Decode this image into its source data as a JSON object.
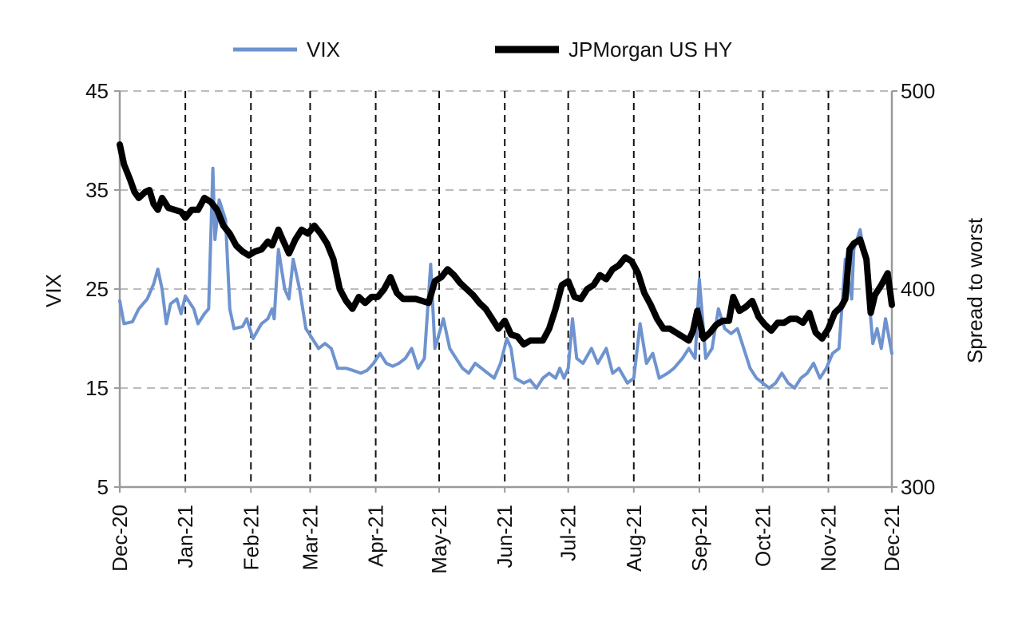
{
  "chart_data": {
    "type": "line",
    "grid": true,
    "legend_position": "top-center",
    "x_axis": {
      "tick_labels": [
        "Dec-20",
        "Jan-21",
        "Feb-21",
        "Mar-21",
        "Apr-21",
        "May-21",
        "Jun-21",
        "Jul-21",
        "Aug-21",
        "Sep-21",
        "Oct-21",
        "Nov-21",
        "Dec-21"
      ],
      "range": [
        "2020-12-01",
        "2021-12-01"
      ]
    },
    "y_left": {
      "label": "VIX",
      "range": [
        5,
        45
      ],
      "ticks": [
        5,
        15,
        25,
        35,
        45
      ]
    },
    "y_right": {
      "label": "Spread to worst",
      "range": [
        300,
        500
      ],
      "ticks": [
        300,
        400,
        500
      ]
    },
    "series": [
      {
        "name": "VIX",
        "axis": "left",
        "color": "#6e93cf",
        "points": [
          [
            "2020-12-01",
            23.8
          ],
          [
            "2020-12-03",
            21.5
          ],
          [
            "2020-12-07",
            21.7
          ],
          [
            "2020-12-10",
            23.0
          ],
          [
            "2020-12-14",
            24.0
          ],
          [
            "2020-12-17",
            25.5
          ],
          [
            "2020-12-19",
            27.0
          ],
          [
            "2020-12-21",
            25.0
          ],
          [
            "2020-12-23",
            21.5
          ],
          [
            "2020-12-25",
            23.5
          ],
          [
            "2020-12-28",
            24.0
          ],
          [
            "2020-12-30",
            22.5
          ],
          [
            "2021-01-01",
            24.3
          ],
          [
            "2021-01-05",
            23.0
          ],
          [
            "2021-01-07",
            21.5
          ],
          [
            "2021-01-10",
            22.5
          ],
          [
            "2021-01-12",
            23.0
          ],
          [
            "2021-01-14",
            37.2
          ],
          [
            "2021-01-15",
            30.0
          ],
          [
            "2021-01-17",
            34.0
          ],
          [
            "2021-01-20",
            32.0
          ],
          [
            "2021-01-22",
            23.0
          ],
          [
            "2021-01-24",
            21.0
          ],
          [
            "2021-01-28",
            21.2
          ],
          [
            "2021-01-30",
            22.0
          ],
          [
            "2021-02-02",
            20.0
          ],
          [
            "2021-02-06",
            21.5
          ],
          [
            "2021-02-09",
            22.0
          ],
          [
            "2021-02-11",
            23.0
          ],
          [
            "2021-02-12",
            22.0
          ],
          [
            "2021-02-14",
            29.0
          ],
          [
            "2021-02-17",
            25.0
          ],
          [
            "2021-02-19",
            24.0
          ],
          [
            "2021-02-21",
            28.0
          ],
          [
            "2021-02-24",
            25.0
          ],
          [
            "2021-02-27",
            21.0
          ],
          [
            "2021-03-02",
            20.0
          ],
          [
            "2021-03-05",
            19.0
          ],
          [
            "2021-03-08",
            19.5
          ],
          [
            "2021-03-11",
            19.0
          ],
          [
            "2021-03-14",
            17.0
          ],
          [
            "2021-03-18",
            17.0
          ],
          [
            "2021-03-21",
            16.8
          ],
          [
            "2021-03-25",
            16.5
          ],
          [
            "2021-03-28",
            16.8
          ],
          [
            "2021-03-31",
            17.5
          ],
          [
            "2021-04-03",
            18.5
          ],
          [
            "2021-04-06",
            17.5
          ],
          [
            "2021-04-09",
            17.2
          ],
          [
            "2021-04-12",
            17.5
          ],
          [
            "2021-04-15",
            18.0
          ],
          [
            "2021-04-18",
            19.0
          ],
          [
            "2021-04-21",
            17.0
          ],
          [
            "2021-04-24",
            18.0
          ],
          [
            "2021-04-27",
            27.5
          ],
          [
            "2021-04-29",
            19.0
          ],
          [
            "2021-05-03",
            22.0
          ],
          [
            "2021-05-06",
            19.0
          ],
          [
            "2021-05-09",
            18.0
          ],
          [
            "2021-05-12",
            17.0
          ],
          [
            "2021-05-15",
            16.5
          ],
          [
            "2021-05-18",
            17.5
          ],
          [
            "2021-05-21",
            17.0
          ],
          [
            "2021-05-24",
            16.5
          ],
          [
            "2021-05-27",
            16.0
          ],
          [
            "2021-05-30",
            17.5
          ],
          [
            "2021-06-02",
            20.0
          ],
          [
            "2021-06-04",
            19.0
          ],
          [
            "2021-06-06",
            16.0
          ],
          [
            "2021-06-10",
            15.5
          ],
          [
            "2021-06-13",
            15.8
          ],
          [
            "2021-06-16",
            15.0
          ],
          [
            "2021-06-19",
            16.0
          ],
          [
            "2021-06-22",
            16.5
          ],
          [
            "2021-06-25",
            16.0
          ],
          [
            "2021-06-27",
            17.0
          ],
          [
            "2021-06-29",
            16.0
          ],
          [
            "2021-07-01",
            17.0
          ],
          [
            "2021-07-03",
            22.0
          ],
          [
            "2021-07-05",
            18.0
          ],
          [
            "2021-07-08",
            17.5
          ],
          [
            "2021-07-12",
            19.0
          ],
          [
            "2021-07-15",
            17.5
          ],
          [
            "2021-07-19",
            19.0
          ],
          [
            "2021-07-22",
            16.5
          ],
          [
            "2021-07-25",
            17.0
          ],
          [
            "2021-07-29",
            15.5
          ],
          [
            "2021-08-01",
            16.0
          ],
          [
            "2021-08-04",
            21.5
          ],
          [
            "2021-08-07",
            17.5
          ],
          [
            "2021-08-10",
            18.5
          ],
          [
            "2021-08-13",
            16.0
          ],
          [
            "2021-08-17",
            16.5
          ],
          [
            "2021-08-20",
            17.0
          ],
          [
            "2021-08-24",
            18.0
          ],
          [
            "2021-08-27",
            19.0
          ],
          [
            "2021-08-30",
            18.0
          ],
          [
            "2021-09-01",
            26.0
          ],
          [
            "2021-09-04",
            18.0
          ],
          [
            "2021-09-07",
            19.0
          ],
          [
            "2021-09-10",
            23.0
          ],
          [
            "2021-09-13",
            21.0
          ],
          [
            "2021-09-16",
            20.5
          ],
          [
            "2021-09-19",
            21.0
          ],
          [
            "2021-09-22",
            19.0
          ],
          [
            "2021-09-25",
            17.0
          ],
          [
            "2021-09-28",
            16.0
          ],
          [
            "2021-10-01",
            15.5
          ],
          [
            "2021-10-04",
            15.0
          ],
          [
            "2021-10-07",
            15.5
          ],
          [
            "2021-10-10",
            16.5
          ],
          [
            "2021-10-13",
            15.5
          ],
          [
            "2021-10-16",
            15.0
          ],
          [
            "2021-10-19",
            16.0
          ],
          [
            "2021-10-22",
            16.5
          ],
          [
            "2021-10-25",
            17.5
          ],
          [
            "2021-10-28",
            16.0
          ],
          [
            "2021-10-31",
            17.0
          ],
          [
            "2021-11-03",
            18.5
          ],
          [
            "2021-11-06",
            19.0
          ],
          [
            "2021-11-09",
            28.0
          ],
          [
            "2021-11-12",
            24.0
          ],
          [
            "2021-11-13",
            29.0
          ],
          [
            "2021-11-16",
            31.0
          ],
          [
            "2021-11-19",
            27.0
          ],
          [
            "2021-11-22",
            19.5
          ],
          [
            "2021-11-24",
            21.0
          ],
          [
            "2021-11-26",
            19.0
          ],
          [
            "2021-11-28",
            22.0
          ],
          [
            "2021-12-01",
            18.5
          ]
        ]
      },
      {
        "name": "JPMorgan US HY",
        "axis": "right",
        "color": "#000000",
        "points": [
          [
            "2020-12-01",
            473
          ],
          [
            "2020-12-03",
            463
          ],
          [
            "2020-12-06",
            455
          ],
          [
            "2020-12-08",
            449
          ],
          [
            "2020-12-10",
            446
          ],
          [
            "2020-12-13",
            449
          ],
          [
            "2020-12-15",
            450
          ],
          [
            "2020-12-17",
            443
          ],
          [
            "2020-12-19",
            440
          ],
          [
            "2020-12-21",
            446
          ],
          [
            "2020-12-24",
            441
          ],
          [
            "2020-12-27",
            440
          ],
          [
            "2020-12-30",
            439
          ],
          [
            "2021-01-01",
            436
          ],
          [
            "2021-01-04",
            440
          ],
          [
            "2021-01-07",
            440
          ],
          [
            "2021-01-10",
            446
          ],
          [
            "2021-01-13",
            444
          ],
          [
            "2021-01-16",
            440
          ],
          [
            "2021-01-19",
            432
          ],
          [
            "2021-01-22",
            428
          ],
          [
            "2021-01-25",
            422
          ],
          [
            "2021-01-28",
            419
          ],
          [
            "2021-01-31",
            417
          ],
          [
            "2021-02-03",
            419
          ],
          [
            "2021-02-06",
            420
          ],
          [
            "2021-02-09",
            424
          ],
          [
            "2021-02-11",
            422
          ],
          [
            "2021-02-14",
            430
          ],
          [
            "2021-02-16",
            425
          ],
          [
            "2021-02-19",
            418
          ],
          [
            "2021-02-22",
            425
          ],
          [
            "2021-02-25",
            430
          ],
          [
            "2021-02-28",
            428
          ],
          [
            "2021-03-03",
            432
          ],
          [
            "2021-03-06",
            428
          ],
          [
            "2021-03-09",
            423
          ],
          [
            "2021-03-12",
            415
          ],
          [
            "2021-03-15",
            400
          ],
          [
            "2021-03-18",
            394
          ],
          [
            "2021-03-21",
            390
          ],
          [
            "2021-03-24",
            396
          ],
          [
            "2021-03-27",
            393
          ],
          [
            "2021-03-30",
            396
          ],
          [
            "2021-04-02",
            396
          ],
          [
            "2021-04-05",
            400
          ],
          [
            "2021-04-08",
            406
          ],
          [
            "2021-04-11",
            398
          ],
          [
            "2021-04-14",
            395
          ],
          [
            "2021-04-17",
            395
          ],
          [
            "2021-04-20",
            395
          ],
          [
            "2021-04-23",
            394
          ],
          [
            "2021-04-26",
            393
          ],
          [
            "2021-04-29",
            404
          ],
          [
            "2021-05-02",
            406
          ],
          [
            "2021-05-05",
            410
          ],
          [
            "2021-05-08",
            407
          ],
          [
            "2021-05-11",
            403
          ],
          [
            "2021-05-14",
            400
          ],
          [
            "2021-05-17",
            397
          ],
          [
            "2021-05-20",
            393
          ],
          [
            "2021-05-23",
            390
          ],
          [
            "2021-05-26",
            385
          ],
          [
            "2021-05-29",
            380
          ],
          [
            "2021-06-01",
            384
          ],
          [
            "2021-06-04",
            377
          ],
          [
            "2021-06-07",
            376
          ],
          [
            "2021-06-10",
            372
          ],
          [
            "2021-06-13",
            374
          ],
          [
            "2021-06-16",
            374
          ],
          [
            "2021-06-19",
            374
          ],
          [
            "2021-06-22",
            380
          ],
          [
            "2021-06-25",
            390
          ],
          [
            "2021-06-28",
            402
          ],
          [
            "2021-07-01",
            404
          ],
          [
            "2021-07-04",
            396
          ],
          [
            "2021-07-07",
            395
          ],
          [
            "2021-07-10",
            400
          ],
          [
            "2021-07-13",
            402
          ],
          [
            "2021-07-16",
            407
          ],
          [
            "2021-07-19",
            405
          ],
          [
            "2021-07-22",
            410
          ],
          [
            "2021-07-25",
            412
          ],
          [
            "2021-07-28",
            416
          ],
          [
            "2021-07-31",
            414
          ],
          [
            "2021-08-03",
            408
          ],
          [
            "2021-08-06",
            398
          ],
          [
            "2021-08-09",
            392
          ],
          [
            "2021-08-12",
            385
          ],
          [
            "2021-08-15",
            380
          ],
          [
            "2021-08-18",
            380
          ],
          [
            "2021-08-21",
            378
          ],
          [
            "2021-08-24",
            376
          ],
          [
            "2021-08-27",
            374
          ],
          [
            "2021-08-29",
            379
          ],
          [
            "2021-08-31",
            389
          ],
          [
            "2021-09-03",
            375
          ],
          [
            "2021-09-06",
            378
          ],
          [
            "2021-09-09",
            382
          ],
          [
            "2021-09-12",
            384
          ],
          [
            "2021-09-15",
            384
          ],
          [
            "2021-09-17",
            396
          ],
          [
            "2021-09-20",
            389
          ],
          [
            "2021-09-23",
            391
          ],
          [
            "2021-09-26",
            394
          ],
          [
            "2021-09-29",
            386
          ],
          [
            "2021-10-02",
            382
          ],
          [
            "2021-10-05",
            379
          ],
          [
            "2021-10-08",
            383
          ],
          [
            "2021-10-11",
            383
          ],
          [
            "2021-10-14",
            385
          ],
          [
            "2021-10-17",
            385
          ],
          [
            "2021-10-20",
            383
          ],
          [
            "2021-10-23",
            388
          ],
          [
            "2021-10-26",
            378
          ],
          [
            "2021-10-29",
            375
          ],
          [
            "2021-11-01",
            380
          ],
          [
            "2021-11-04",
            388
          ],
          [
            "2021-11-07",
            391
          ],
          [
            "2021-11-09",
            395
          ],
          [
            "2021-11-11",
            420
          ],
          [
            "2021-11-13",
            423
          ],
          [
            "2021-11-16",
            425
          ],
          [
            "2021-11-19",
            415
          ],
          [
            "2021-11-21",
            388
          ],
          [
            "2021-11-23",
            397
          ],
          [
            "2021-11-26",
            402
          ],
          [
            "2021-11-29",
            408
          ],
          [
            "2021-12-01",
            392
          ]
        ]
      }
    ]
  }
}
